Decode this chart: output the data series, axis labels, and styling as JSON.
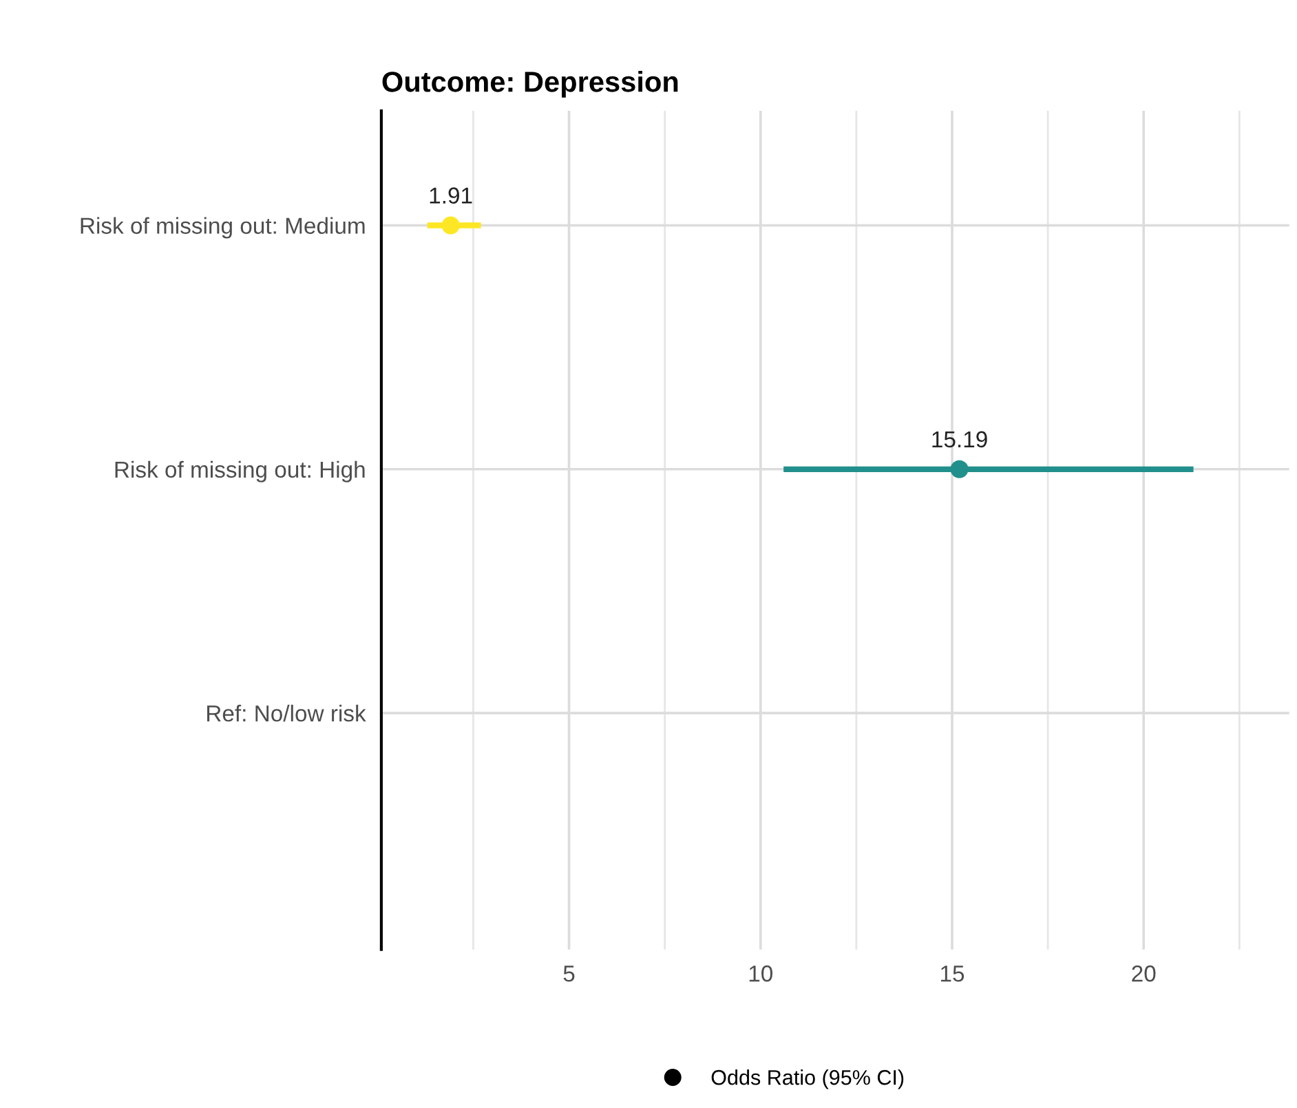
{
  "chart_data": {
    "type": "scatter",
    "orientation": "horizontal",
    "title": "Outcome: Depression",
    "categories": [
      "Risk of missing out: Medium",
      "Risk of missing out: High",
      "Ref: No/low risk"
    ],
    "series": [
      {
        "name": "Odds Ratio (95% CI)",
        "color": "#000000",
        "colors": [
          "#fde725",
          "#21908c",
          null
        ],
        "values": [
          1.91,
          15.19,
          null
        ],
        "errors": [
          [
            1.3,
            2.7
          ],
          [
            10.6,
            21.3
          ],
          null
        ]
      }
    ],
    "xlim": [
      0.1,
      23.8
    ],
    "xticks": [
      {
        "value": 2.5,
        "label": null
      },
      5,
      {
        "value": 7.5,
        "label": null
      },
      10,
      {
        "value": 12.5,
        "label": null
      },
      15,
      {
        "value": 17.5,
        "label": null
      },
      20,
      {
        "value": 22.5,
        "label": null
      }
    ],
    "data_labels": true,
    "grid": true,
    "legend": "bottom",
    "marker": "circle"
  }
}
